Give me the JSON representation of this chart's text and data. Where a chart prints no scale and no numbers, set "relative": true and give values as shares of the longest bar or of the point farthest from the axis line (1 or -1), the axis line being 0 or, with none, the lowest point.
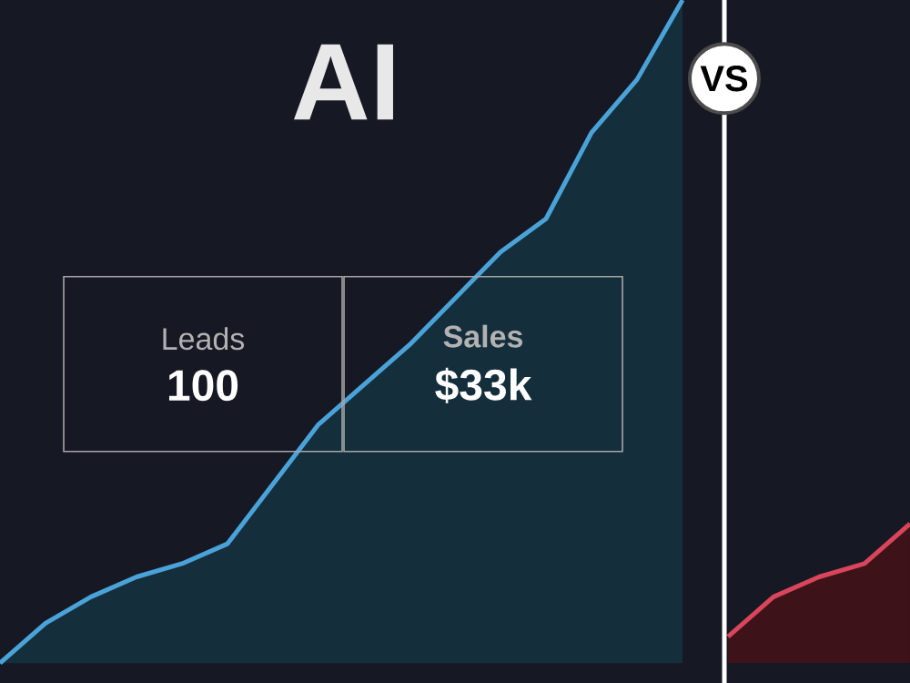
{
  "chart_data": {
    "type": "area",
    "title": "AI",
    "relative": true,
    "categories": [
      null,
      null,
      null,
      null,
      null,
      null,
      null,
      null,
      null,
      null,
      null,
      null,
      null,
      null,
      null,
      null,
      null,
      null,
      null,
      null,
      null
    ],
    "series": [
      {
        "color": "#4aa3d8",
        "values": [
          0,
          0.06,
          0.1,
          0.13,
          0.15,
          0.18,
          0.27,
          0.36,
          0.42,
          0.48,
          0.55,
          0.62,
          0.67,
          0.8,
          0.88,
          1.0,
          null,
          null,
          null,
          null,
          null
        ]
      },
      {
        "color": "#d9455a",
        "values": [
          null,
          null,
          null,
          null,
          null,
          null,
          null,
          null,
          null,
          null,
          null,
          null,
          null,
          null,
          null,
          null,
          0.04,
          0.1,
          0.13,
          0.15,
          0.21
        ]
      }
    ],
    "annotations": [
      "Leads",
      "100",
      "Sales",
      "$33k",
      "VS"
    ]
  }
}
